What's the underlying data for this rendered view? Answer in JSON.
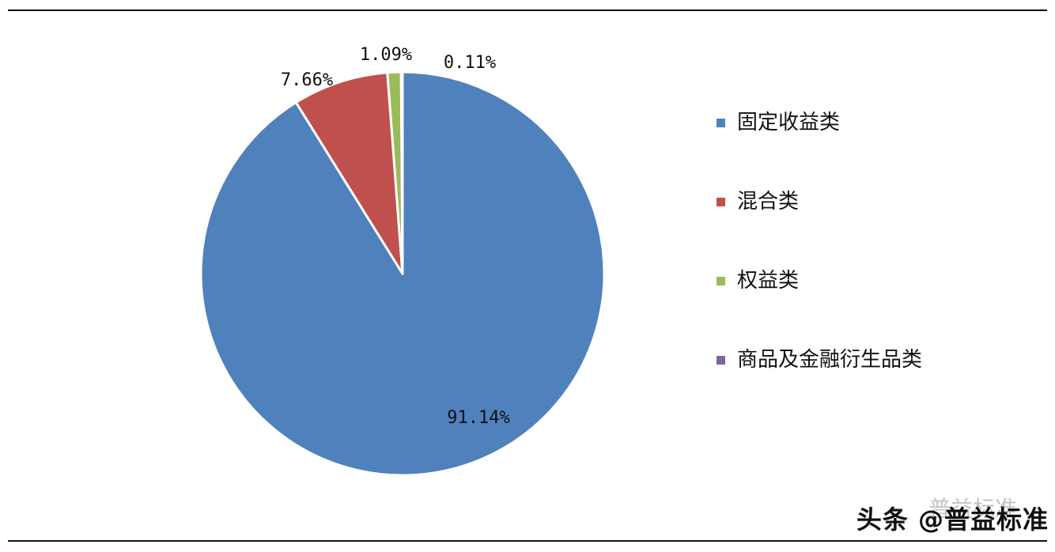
{
  "chart_data": {
    "type": "pie",
    "slices": [
      {
        "name": "固定收益类",
        "value": 91.14,
        "label": "91.14%",
        "color": "#4f81bd"
      },
      {
        "name": "混合类",
        "value": 7.66,
        "label": "7.66%",
        "color": "#c0504d"
      },
      {
        "name": "权益类",
        "value": 1.09,
        "label": "1.09%",
        "color": "#9bbb59"
      },
      {
        "name": "商品及金融衍生品类",
        "value": 0.11,
        "label": "0.11%",
        "color": "#8064a2"
      }
    ],
    "legend_position": "right"
  },
  "watermark": {
    "main": "头条 @普益标准",
    "faded": "普益标准"
  }
}
